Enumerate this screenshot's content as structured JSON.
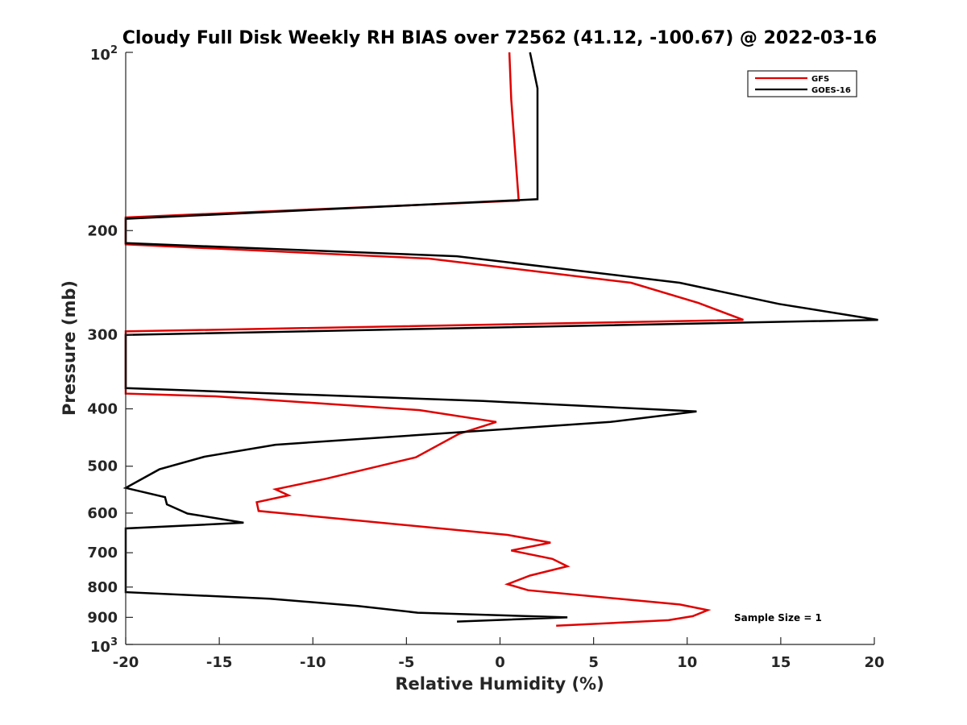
{
  "chart_data": {
    "type": "line",
    "title": "Cloudy Full Disk Weekly RH BIAS over 72562 (41.12, -100.67) @ 2022-03-16",
    "xlabel": "Relative Humidity (%)",
    "ylabel": "Pressure (mb)",
    "xlim": [
      -20,
      20
    ],
    "ylim": [
      100,
      1000
    ],
    "yscale": "log",
    "yreversed": true,
    "grid": false,
    "legend_position": "top-right",
    "x_ticks": [
      -20,
      -15,
      -10,
      -5,
      0,
      5,
      10,
      15,
      20
    ],
    "x_tick_labels": [
      "-20",
      "-15",
      "-10",
      "-5",
      "0",
      "5",
      "10",
      "15",
      "20"
    ],
    "y_ticks": [
      200,
      300,
      400,
      500,
      600,
      700,
      800,
      900
    ],
    "y_tick_labels": [
      "200",
      "300",
      "400",
      "500",
      "600",
      "700",
      "800",
      "900"
    ],
    "y_end_labels": [
      {
        "value": 100,
        "base": "10",
        "exp": "2"
      },
      {
        "value": 1000,
        "base": "10",
        "exp": "3"
      }
    ],
    "annotation": "Sample Size = 1",
    "series": [
      {
        "name": "GFS",
        "color": "#e00000",
        "points": [
          [
            0.5,
            100
          ],
          [
            0.6,
            120
          ],
          [
            1.0,
            178
          ],
          [
            -20,
            190
          ],
          [
            -20,
            211
          ],
          [
            -3.8,
            223
          ],
          [
            7.0,
            245
          ],
          [
            10.6,
            265
          ],
          [
            13.0,
            283
          ],
          [
            -20,
            296
          ],
          [
            -20,
            377
          ],
          [
            -15.2,
            381
          ],
          [
            -4.3,
            402
          ],
          [
            -0.2,
            421
          ],
          [
            -2.2,
            441
          ],
          [
            -4.5,
            483
          ],
          [
            -9.3,
            525
          ],
          [
            -12.0,
            547
          ],
          [
            -11.3,
            560
          ],
          [
            -13.0,
            575
          ],
          [
            -12.9,
            595
          ],
          [
            0.4,
            653
          ],
          [
            2.7,
            673
          ],
          [
            0.6,
            694
          ],
          [
            2.8,
            717
          ],
          [
            3.6,
            738
          ],
          [
            1.6,
            765
          ],
          [
            0.4,
            791
          ],
          [
            1.5,
            810
          ],
          [
            9.6,
            856
          ],
          [
            11.1,
            875
          ],
          [
            10.3,
            896
          ],
          [
            9.0,
            910
          ],
          [
            3.0,
            930
          ]
        ]
      },
      {
        "name": "GOES-16",
        "color": "#000000",
        "points": [
          [
            1.6,
            100
          ],
          [
            2.0,
            115
          ],
          [
            2.0,
            177
          ],
          [
            -20,
            191
          ],
          [
            -20,
            210
          ],
          [
            -2.3,
            221
          ],
          [
            9.6,
            245
          ],
          [
            14.9,
            266
          ],
          [
            20.2,
            283
          ],
          [
            -20,
            300
          ],
          [
            -20,
            369
          ],
          [
            -0.9,
            388
          ],
          [
            10.5,
            404
          ],
          [
            5.9,
            421
          ],
          [
            -12.0,
            460
          ],
          [
            -15.8,
            482
          ],
          [
            -18.2,
            506
          ],
          [
            -20,
            544
          ],
          [
            -17.9,
            564
          ],
          [
            -17.8,
            580
          ],
          [
            -16.7,
            601
          ],
          [
            -13.7,
            623
          ],
          [
            -20,
            637
          ],
          [
            -20,
            816
          ],
          [
            -12.3,
            837
          ],
          [
            -7.6,
            861
          ],
          [
            -4.4,
            884
          ],
          [
            3.6,
            900
          ],
          [
            -2.3,
            915
          ]
        ]
      }
    ]
  }
}
